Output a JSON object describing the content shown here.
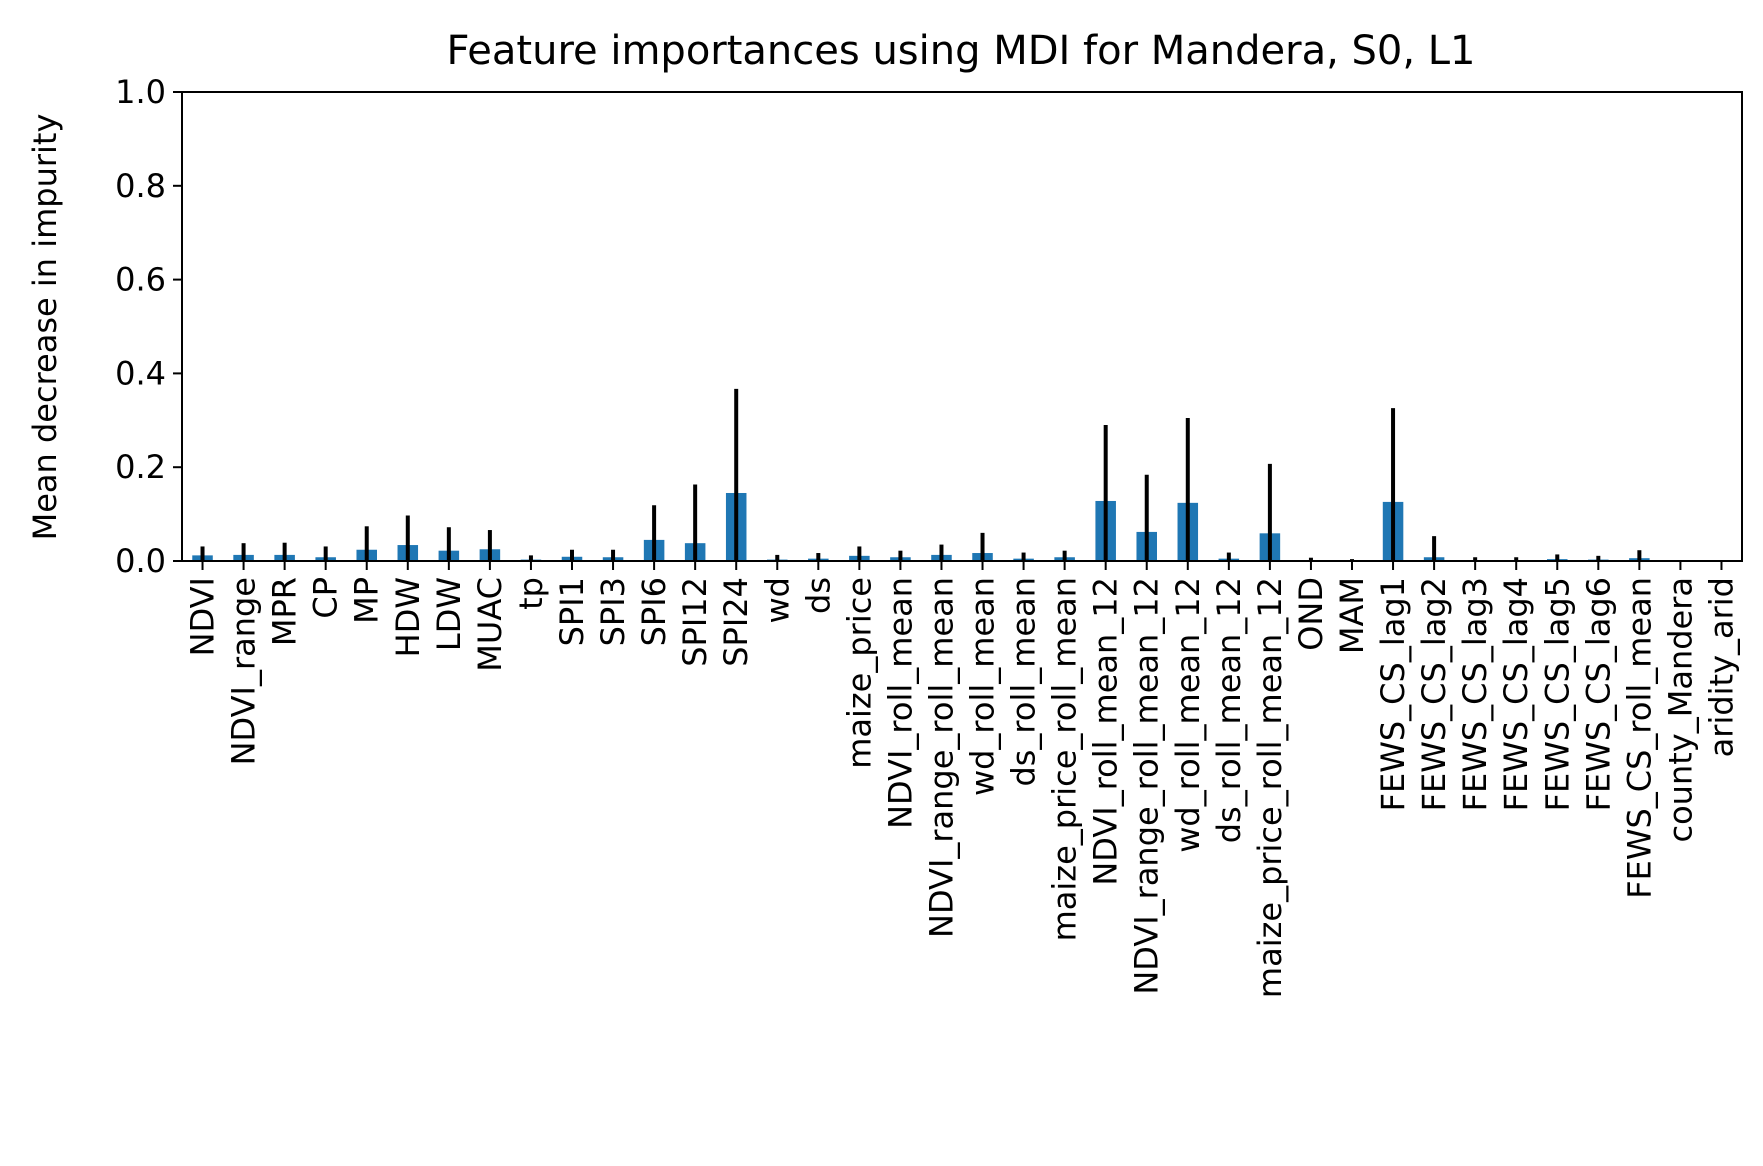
{
  "chart_data": {
    "type": "bar",
    "title": "Feature importances using MDI for Mandera, S0, L1",
    "xlabel": "",
    "ylabel": "Mean decrease in impurity",
    "ylim": [
      0,
      1.0
    ],
    "yticks": [
      "0.0",
      "0.2",
      "0.4",
      "0.6",
      "0.8",
      "1.0"
    ],
    "yticks_values": [
      0,
      0.2,
      0.4,
      0.6,
      0.8,
      1.0
    ],
    "grid": false,
    "bar_color": "#1f77b4",
    "error_color": "#000000",
    "categories": [
      "NDVI",
      "NDVI_range",
      "MPR",
      "CP",
      "MP",
      "HDW",
      "LDW",
      "MUAC",
      "tp",
      "SPI1",
      "SPI3",
      "SPI6",
      "SPI12",
      "SPI24",
      "wd",
      "ds",
      "maize_price",
      "NDVI_roll_mean",
      "NDVI_range_roll_mean",
      "wd_roll_mean",
      "ds_roll_mean",
      "maize_price_roll_mean",
      "NDVI_roll_mean_12",
      "NDVI_range_roll_mean_12",
      "wd_roll_mean_12",
      "ds_roll_mean_12",
      "maize_price_roll_mean_12",
      "OND",
      "MAM",
      "FEWS_CS_lag1",
      "FEWS_CS_lag2",
      "FEWS_CS_lag3",
      "FEWS_CS_lag4",
      "FEWS_CS_lag5",
      "FEWS_CS_lag6",
      "FEWS_CS_roll_mean",
      "county_Mandera",
      "aridity_arid"
    ],
    "values": [
      0.012,
      0.013,
      0.013,
      0.008,
      0.024,
      0.034,
      0.022,
      0.025,
      0.003,
      0.009,
      0.008,
      0.045,
      0.038,
      0.145,
      0.003,
      0.005,
      0.011,
      0.008,
      0.013,
      0.017,
      0.005,
      0.008,
      0.128,
      0.062,
      0.124,
      0.005,
      0.059,
      0.002,
      0.001,
      0.126,
      0.008,
      0.002,
      0.002,
      0.004,
      0.003,
      0.006,
      0.0,
      0.0
    ],
    "errors": [
      0.019,
      0.025,
      0.026,
      0.023,
      0.05,
      0.063,
      0.05,
      0.041,
      0.009,
      0.015,
      0.016,
      0.074,
      0.125,
      0.222,
      0.01,
      0.012,
      0.02,
      0.014,
      0.022,
      0.043,
      0.013,
      0.014,
      0.162,
      0.122,
      0.181,
      0.013,
      0.148,
      0.005,
      0.003,
      0.2,
      0.045,
      0.006,
      0.006,
      0.01,
      0.008,
      0.017,
      0.0,
      0.0
    ]
  }
}
